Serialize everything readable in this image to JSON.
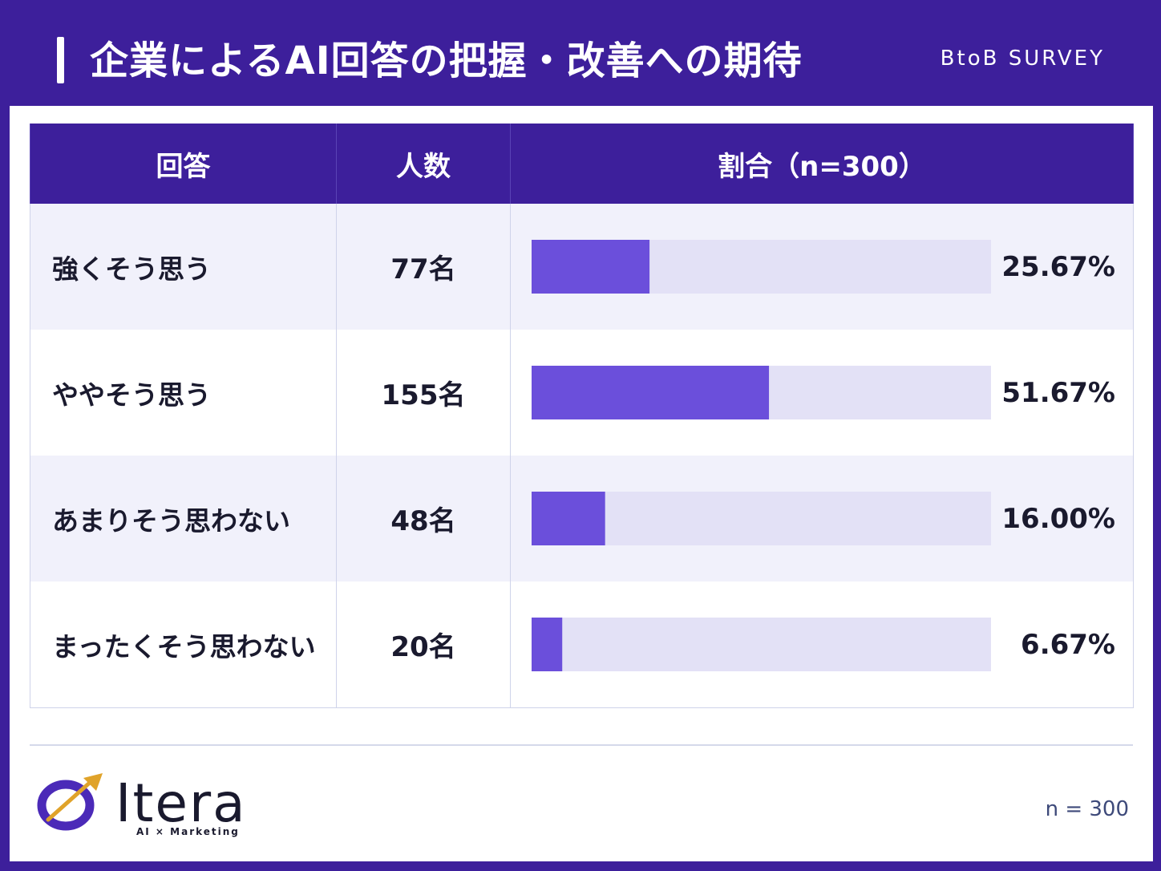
{
  "header": {
    "title": "企業によるAI回答の把握・改善への期待",
    "tag": "BtoB SURVEY"
  },
  "table": {
    "columns": [
      "回答",
      "人数",
      "割合（n=300）"
    ]
  },
  "chart_data": {
    "type": "bar",
    "orientation": "horizontal",
    "categories": [
      "強くそう思う",
      "ややそう思う",
      "あまりそう思わない",
      "まったくそう思わない"
    ],
    "counts": [
      "77名",
      "155名",
      "48名",
      "20名"
    ],
    "values": [
      25.67,
      51.67,
      16.0,
      6.67
    ],
    "value_labels": [
      "25.67%",
      "51.67%",
      "16.00%",
      "6.67%"
    ],
    "xlim": [
      0,
      100
    ],
    "bar_color": "#6b4fdb",
    "track_color": "#e3e1f6"
  },
  "footer": {
    "logo_text": "Itera",
    "logo_sub": "AI × Marketing",
    "n_note": "n = 300"
  },
  "colors": {
    "primary": "#3d1f9b",
    "accent": "#6b4fdb",
    "logo_arrow": "#e0a32a"
  }
}
